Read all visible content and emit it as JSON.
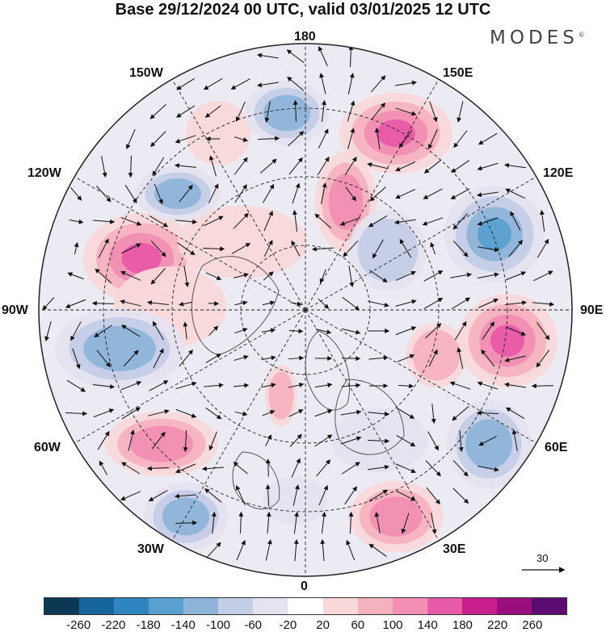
{
  "title": "Base 29/12/2024 00 UTC, valid 03/01/2025 12 UTC",
  "brand": "MODES",
  "brand_mark": "©",
  "longitude_labels": {
    "top": "180",
    "bottom": "0",
    "left": "90W",
    "right": "90E",
    "w150": "150W",
    "e150": "150E",
    "w120": "120W",
    "e120": "120E",
    "w60": "60W",
    "e60": "60E",
    "w30": "30W",
    "e30": "30E"
  },
  "reference_vector_label": "30",
  "colorbar": {
    "colors": [
      "#0b3954",
      "#17669b",
      "#2f85bf",
      "#5aa0cf",
      "#8fb4d9",
      "#c4cde6",
      "#e6e3f0",
      "#ffffff",
      "#f9d8da",
      "#f5b3bf",
      "#f28fb3",
      "#e75aa8",
      "#c81e8c",
      "#9b0f7d",
      "#5c0b70"
    ],
    "ticks": [
      "-260",
      "-220",
      "-180",
      "-140",
      "-100",
      "-60",
      "-20",
      "20",
      "60",
      "100",
      "140",
      "180",
      "220",
      "260"
    ]
  },
  "anomaly_centers": [
    {
      "value": 170,
      "label": "positive"
    },
    {
      "value": -140,
      "label": "negative"
    }
  ],
  "colors": {
    "outline": "#222222",
    "grid": "#222222",
    "land": "#555555"
  }
}
